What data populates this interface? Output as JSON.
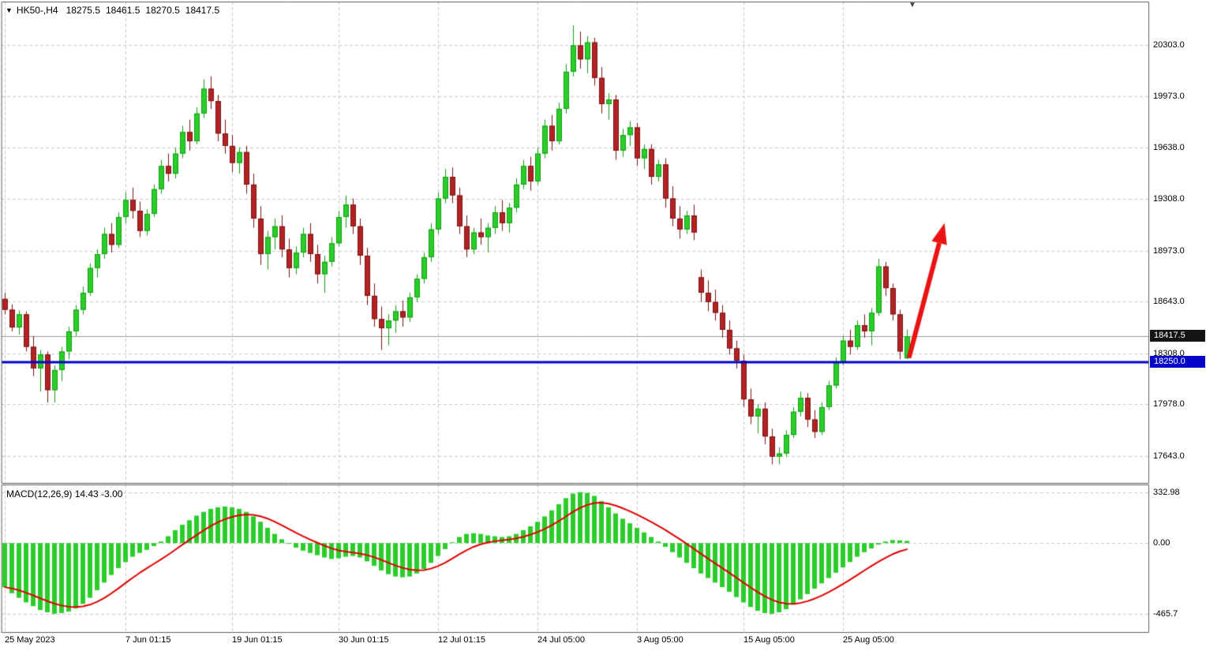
{
  "header": {
    "marker_icon": "▼",
    "symbol": "HK50-,H4",
    "open": "18275.5",
    "high": "18461.5",
    "low": "18270.5",
    "close": "18417.5"
  },
  "top_marker_icon": "▼",
  "colors": {
    "background": "#ffffff",
    "grid": "#c9c9c9",
    "pane_border": "#5f5f5f",
    "candle_up": "#2bcd2b",
    "candle_up_border": "#12a012",
    "candle_down": "#b22222",
    "candle_down_border": "#7c1414",
    "macd_histogram": "#2bcd2b",
    "macd_signal": "#e10000",
    "support_line": "#0504c9",
    "current_price_line": "#9a9a9a",
    "current_price_badge_bg": "#141414",
    "support_badge_bg": "#0504c9",
    "arrow": "#ea1212",
    "text": "#000000"
  },
  "chart_data": [
    {
      "type": "candlestick",
      "title": "HK50-,H4",
      "ohlc_current": {
        "open": 18275.5,
        "high": 18461.5,
        "low": 18270.5,
        "close": 18417.5
      },
      "y_axis_ticks": [
        20303.0,
        19973.0,
        19638.0,
        19308.0,
        18973.0,
        18643.0,
        18308.0,
        17978.0,
        17643.0
      ],
      "current_price": 18417.5,
      "current_price_label": "18417.5",
      "support_line": {
        "price": 18250.0,
        "label": "18250.0",
        "color": "#0504c9"
      },
      "x_tick_labels": [
        {
          "index": 0,
          "text": "25 May 2023"
        },
        {
          "index": 17,
          "text": "7 Jun 01:15"
        },
        {
          "index": 32,
          "text": "19 Jun 01:15"
        },
        {
          "index": 47,
          "text": "30 Jun 01:15"
        },
        {
          "index": 61,
          "text": "12 Jul 01:15"
        },
        {
          "index": 75,
          "text": "24 Jul 05:00"
        },
        {
          "index": 89,
          "text": "3 Aug 05:00"
        },
        {
          "index": 104,
          "text": "15 Aug 05:00"
        },
        {
          "index": 118,
          "text": "25 Aug 05:00"
        }
      ],
      "annotations": [
        {
          "type": "arrow-up",
          "from": {
            "x_index": 127.3,
            "price": 18280
          },
          "to": {
            "x_index": 132.3,
            "price": 19150
          },
          "color": "#ea1212"
        }
      ],
      "candles": [
        [
          18660,
          18700,
          18560,
          18590
        ],
        [
          18590,
          18625,
          18450,
          18475
        ],
        [
          18475,
          18585,
          18430,
          18560
        ],
        [
          18560,
          18580,
          18320,
          18350
        ],
        [
          18350,
          18420,
          18160,
          18210
        ],
        [
          18210,
          18330,
          18060,
          18300
        ],
        [
          18300,
          18320,
          17990,
          18070
        ],
        [
          18070,
          18230,
          17990,
          18200
        ],
        [
          18200,
          18350,
          18130,
          18320
        ],
        [
          18320,
          18480,
          18270,
          18450
        ],
        [
          18450,
          18620,
          18420,
          18590
        ],
        [
          18590,
          18740,
          18560,
          18700
        ],
        [
          18700,
          18890,
          18680,
          18860
        ],
        [
          18860,
          18980,
          18800,
          18950
        ],
        [
          18950,
          19120,
          18920,
          19080
        ],
        [
          19080,
          19150,
          18960,
          19010
        ],
        [
          19010,
          19220,
          18990,
          19190
        ],
        [
          19190,
          19350,
          19150,
          19300
        ],
        [
          19300,
          19380,
          19180,
          19230
        ],
        [
          19230,
          19290,
          19060,
          19100
        ],
        [
          19100,
          19240,
          19070,
          19210
        ],
        [
          19210,
          19400,
          19190,
          19370
        ],
        [
          19370,
          19560,
          19340,
          19520
        ],
        [
          19520,
          19600,
          19420,
          19470
        ],
        [
          19470,
          19640,
          19440,
          19600
        ],
        [
          19600,
          19780,
          19570,
          19740
        ],
        [
          19740,
          19820,
          19620,
          19680
        ],
        [
          19680,
          19900,
          19660,
          19860
        ],
        [
          19860,
          20080,
          19830,
          20020
        ],
        [
          20020,
          20100,
          19890,
          19940
        ],
        [
          19940,
          19980,
          19680,
          19730
        ],
        [
          19730,
          19820,
          19600,
          19650
        ],
        [
          19650,
          19720,
          19480,
          19540
        ],
        [
          19540,
          19640,
          19470,
          19610
        ],
        [
          19610,
          19650,
          19340,
          19400
        ],
        [
          19400,
          19470,
          19120,
          19180
        ],
        [
          19180,
          19260,
          18880,
          18950
        ],
        [
          18950,
          19100,
          18850,
          19060
        ],
        [
          19060,
          19180,
          18980,
          19130
        ],
        [
          19130,
          19200,
          18930,
          18980
        ],
        [
          18980,
          19050,
          18800,
          18860
        ],
        [
          18860,
          19000,
          18820,
          18960
        ],
        [
          18960,
          19120,
          18930,
          19080
        ],
        [
          19080,
          19150,
          18900,
          18950
        ],
        [
          18950,
          19010,
          18760,
          18820
        ],
        [
          18820,
          18940,
          18700,
          18900
        ],
        [
          18900,
          19060,
          18870,
          19020
        ],
        [
          19020,
          19230,
          19000,
          19190
        ],
        [
          19190,
          19330,
          19120,
          19270
        ],
        [
          19270,
          19310,
          19080,
          19130
        ],
        [
          19130,
          19180,
          18880,
          18940
        ],
        [
          18940,
          18990,
          18620,
          18680
        ],
        [
          18680,
          18760,
          18480,
          18530
        ],
        [
          18530,
          18610,
          18330,
          18470
        ],
        [
          18470,
          18560,
          18360,
          18520
        ],
        [
          18520,
          18620,
          18440,
          18580
        ],
        [
          18580,
          18650,
          18480,
          18540
        ],
        [
          18540,
          18700,
          18510,
          18670
        ],
        [
          18670,
          18820,
          18640,
          18790
        ],
        [
          18790,
          18960,
          18760,
          18930
        ],
        [
          18930,
          19150,
          18900,
          19110
        ],
        [
          19110,
          19350,
          19080,
          19310
        ],
        [
          19310,
          19500,
          19280,
          19450
        ],
        [
          19450,
          19510,
          19280,
          19330
        ],
        [
          19330,
          19380,
          19080,
          19130
        ],
        [
          19130,
          19200,
          18930,
          18980
        ],
        [
          18980,
          19120,
          18950,
          19090
        ],
        [
          19090,
          19180,
          19010,
          19060
        ],
        [
          19060,
          19150,
          18960,
          19120
        ],
        [
          19120,
          19260,
          19080,
          19220
        ],
        [
          19220,
          19300,
          19100,
          19150
        ],
        [
          19150,
          19280,
          19090,
          19250
        ],
        [
          19250,
          19440,
          19220,
          19400
        ],
        [
          19400,
          19560,
          19370,
          19520
        ],
        [
          19520,
          19580,
          19360,
          19420
        ],
        [
          19420,
          19640,
          19400,
          19600
        ],
        [
          19600,
          19820,
          19570,
          19780
        ],
        [
          19780,
          19850,
          19620,
          19680
        ],
        [
          19680,
          19930,
          19660,
          19890
        ],
        [
          19890,
          20180,
          19860,
          20130
        ],
        [
          20130,
          20430,
          20100,
          20300
        ],
        [
          20300,
          20390,
          20150,
          20210
        ],
        [
          20210,
          20360,
          20120,
          20320
        ],
        [
          20320,
          20350,
          20040,
          20090
        ],
        [
          20090,
          20160,
          19860,
          19920
        ],
        [
          19920,
          19990,
          19820,
          19950
        ],
        [
          19950,
          19980,
          19560,
          19620
        ],
        [
          19620,
          19760,
          19580,
          19720
        ],
        [
          19720,
          19810,
          19650,
          19770
        ],
        [
          19770,
          19800,
          19520,
          19570
        ],
        [
          19570,
          19660,
          19500,
          19630
        ],
        [
          19630,
          19660,
          19400,
          19450
        ],
        [
          19450,
          19560,
          19420,
          19530
        ],
        [
          19530,
          19570,
          19250,
          19310
        ],
        [
          19310,
          19390,
          19130,
          19180
        ],
        [
          19180,
          19260,
          19050,
          19110
        ],
        [
          19110,
          19230,
          19080,
          19200
        ],
        [
          19200,
          19270,
          19040,
          19090
        ],
        [
          18800,
          18850,
          18640,
          18700
        ],
        [
          18700,
          18780,
          18580,
          18640
        ],
        [
          18640,
          18720,
          18520,
          18570
        ],
        [
          18570,
          18620,
          18410,
          18460
        ],
        [
          18460,
          18520,
          18300,
          18340
        ],
        [
          18340,
          18390,
          18210,
          18260
        ],
        [
          18260,
          18300,
          17960,
          18010
        ],
        [
          18010,
          18080,
          17850,
          17900
        ],
        [
          17900,
          17980,
          17790,
          17950
        ],
        [
          17950,
          17990,
          17720,
          17770
        ],
        [
          17770,
          17820,
          17590,
          17640
        ],
        [
          17640,
          17700,
          17590,
          17660
        ],
        [
          17660,
          17810,
          17640,
          17780
        ],
        [
          17780,
          17960,
          17760,
          17930
        ],
        [
          17930,
          18060,
          17900,
          18020
        ],
        [
          18020,
          18050,
          17830,
          17880
        ],
        [
          17880,
          17940,
          17760,
          17800
        ],
        [
          17800,
          17990,
          17780,
          17960
        ],
        [
          17960,
          18130,
          17940,
          18100
        ],
        [
          18100,
          18280,
          18080,
          18250
        ],
        [
          18250,
          18420,
          18230,
          18390
        ],
        [
          18390,
          18460,
          18300,
          18350
        ],
        [
          18350,
          18520,
          18330,
          18490
        ],
        [
          18490,
          18560,
          18410,
          18450
        ],
        [
          18450,
          18600,
          18360,
          18570
        ],
        [
          18570,
          18920,
          18550,
          18870
        ],
        [
          18870,
          18900,
          18680,
          18730
        ],
        [
          18730,
          18760,
          18520,
          18560
        ],
        [
          18560,
          18590,
          18270,
          18320
        ],
        [
          18275.5,
          18461.5,
          18270.5,
          18417.5
        ]
      ]
    },
    {
      "type": "bar",
      "name": "MACD",
      "params": "(12,26,9)",
      "label": "MACD(12,26,9) 14.43 -3.00",
      "macd_value": "14.43",
      "signal_value": "-3.00",
      "signal_period": 9,
      "y_axis_ticks": [
        {
          "text": "332.98",
          "value": 332.98
        },
        {
          "text": "0.00",
          "value": 0
        },
        {
          "text": "-465.7",
          "value": -465.7
        }
      ],
      "values": [
        -290,
        -330,
        -360,
        -390,
        -415,
        -440,
        -455,
        -465,
        -460,
        -450,
        -430,
        -400,
        -360,
        -310,
        -260,
        -210,
        -165,
        -125,
        -90,
        -65,
        -45,
        -20,
        10,
        45,
        85,
        120,
        150,
        180,
        205,
        225,
        235,
        240,
        235,
        225,
        205,
        175,
        140,
        100,
        60,
        25,
        -5,
        -30,
        -50,
        -65,
        -80,
        -95,
        -105,
        -100,
        -90,
        -85,
        -95,
        -120,
        -150,
        -180,
        -205,
        -220,
        -225,
        -220,
        -200,
        -170,
        -130,
        -85,
        -40,
        5,
        40,
        60,
        65,
        60,
        50,
        45,
        40,
        45,
        60,
        85,
        110,
        140,
        175,
        215,
        255,
        295,
        325,
        335,
        330,
        310,
        275,
        235,
        195,
        160,
        130,
        100,
        70,
        40,
        10,
        -25,
        -60,
        -95,
        -130,
        -165,
        -200,
        -230,
        -260,
        -290,
        -320,
        -355,
        -390,
        -420,
        -445,
        -460,
        -465,
        -455,
        -435,
        -405,
        -370,
        -335,
        -300,
        -265,
        -230,
        -195,
        -160,
        -125,
        -90,
        -60,
        -35,
        -10,
        10,
        20,
        18,
        14.43
      ]
    }
  ]
}
